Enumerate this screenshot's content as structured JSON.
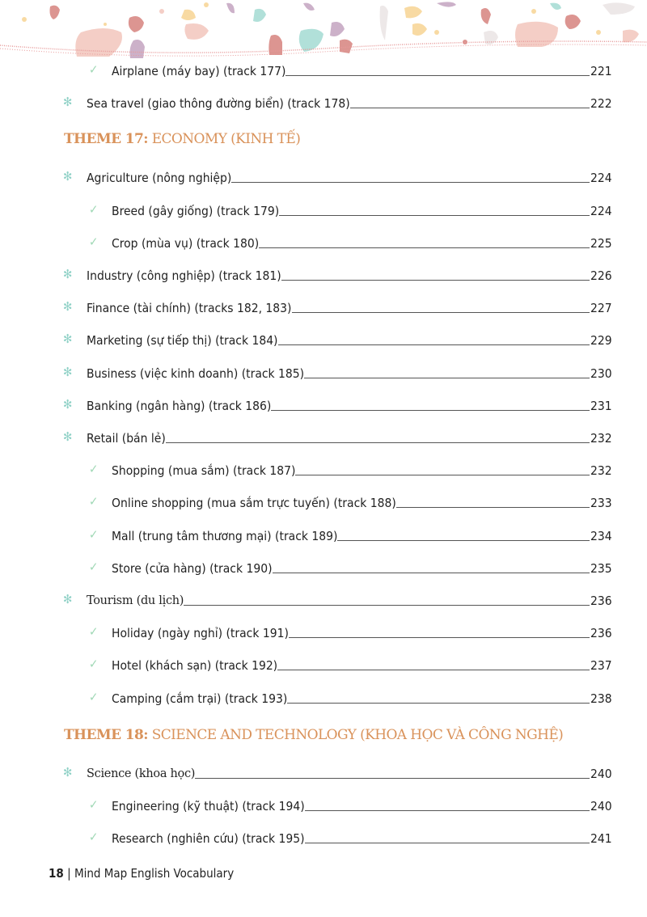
{
  "colors": {
    "accent_theme": "#d9925a",
    "bullet_main": "#8fd1c6",
    "bullet_sub": "#9fd8b5"
  },
  "icons": {
    "main_bullet": "asterisk-icon",
    "sub_bullet": "checkmark-icon"
  },
  "entries_top": [
    {
      "type": "sub",
      "label": "Airplane (máy bay) (track 177)",
      "page": "221"
    },
    {
      "type": "main",
      "label": "Sea travel (giao thông đường biển) (track 178)",
      "page": "222"
    }
  ],
  "theme17": {
    "prefix": "THEME 17:",
    "title": "ECONOMY (KINH TẾ)"
  },
  "entries17": [
    {
      "type": "main",
      "label": "Agriculture (nông nghiệp)",
      "page": "224"
    },
    {
      "type": "sub",
      "label": "Breed (gây giống) (track 179)",
      "page": "224"
    },
    {
      "type": "sub",
      "label": "Crop (mùa vụ) (track 180)",
      "page": "225"
    },
    {
      "type": "main",
      "label": "Industry (công nghiệp) (track 181)",
      "page": "226"
    },
    {
      "type": "main",
      "label": "Finance (tài chính) (tracks 182, 183)",
      "page": "227"
    },
    {
      "type": "main",
      "label": "Marketing (sự tiếp thị) (track 184)",
      "page": "229"
    },
    {
      "type": "main",
      "label": "Business (việc kinh doanh) (track 185)",
      "page": "230"
    },
    {
      "type": "main",
      "label": "Banking (ngân hàng) (track 186)",
      "page": "231"
    },
    {
      "type": "main",
      "label": "Retail (bán lẻ)",
      "page": "232"
    },
    {
      "type": "sub",
      "label": "Shopping (mua sắm) (track 187)",
      "page": "232"
    },
    {
      "type": "sub",
      "label": "Online shopping (mua sắm trực tuyến) (track 188)",
      "page": "233"
    },
    {
      "type": "sub",
      "label": "Mall (trung tâm thương mại) (track 189)",
      "page": "234"
    },
    {
      "type": "sub",
      "label": "Store (cửa hàng) (track 190)",
      "page": "235"
    },
    {
      "type": "main",
      "label": "Tourism (du lịch)",
      "page": "236"
    },
    {
      "type": "sub",
      "label": "Holiday (ngày nghỉ) (track 191)",
      "page": "236"
    },
    {
      "type": "sub",
      "label": "Hotel (khách sạn) (track 192)",
      "page": "237"
    },
    {
      "type": "sub",
      "label": "Camping (cắm trại) (track 193)",
      "page": "238"
    }
  ],
  "theme18": {
    "prefix": "THEME 18:",
    "title": "SCIENCE AND TECHNOLOGY (KHOA HỌC VÀ CÔNG NGHỆ)"
  },
  "entries18": [
    {
      "type": "main",
      "label": "Science (khoa học)",
      "page": "240"
    },
    {
      "type": "sub",
      "label": "Engineering (kỹ thuật) (track 194)",
      "page": "240"
    },
    {
      "type": "sub",
      "label": "Research (nghiên cứu) (track 195)",
      "page": "241"
    }
  ],
  "footer": {
    "page_number": "18",
    "separator": "|",
    "book_title": "Mind Map English Vocabulary"
  }
}
